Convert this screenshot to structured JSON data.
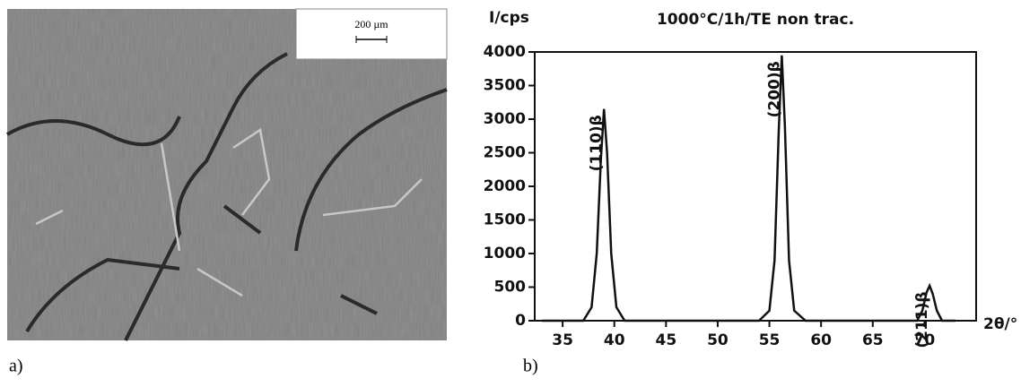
{
  "panel_a": {
    "label": "a)",
    "scale_bar": "200 µm"
  },
  "chart_data": {
    "type": "line",
    "panel_label": "b)",
    "title": "1000°C/1h/TE non trac.",
    "y_label": "I/cps",
    "x_label": "2θ/°",
    "xlim": [
      32.3,
      75
    ],
    "ylim": [
      0,
      4000
    ],
    "xticks": [
      35,
      40,
      45,
      50,
      55,
      60,
      65,
      70
    ],
    "yticks": [
      0,
      500,
      1000,
      1500,
      2000,
      2500,
      3000,
      3500,
      4000
    ],
    "series": [
      {
        "color": "#111111",
        "x": [
          33,
          37,
          37.8,
          38.3,
          38.7,
          39,
          39.3,
          39.7,
          40.2,
          41,
          54,
          55,
          55.5,
          55.9,
          56.2,
          56.5,
          56.9,
          57.4,
          58.5,
          69.3,
          69.8,
          70.2,
          70.5,
          70.8,
          71.2,
          71.7,
          73
        ],
        "values": [
          0,
          0,
          200,
          1000,
          2400,
          3150,
          2500,
          1000,
          200,
          0,
          0,
          150,
          900,
          2800,
          3950,
          2900,
          900,
          150,
          0,
          0,
          150,
          420,
          520,
          400,
          150,
          0,
          0
        ]
      }
    ],
    "annotations": [
      {
        "text": "(110)β",
        "x": 39
      },
      {
        "text": "(200)β",
        "x": 56.2
      },
      {
        "text": "(211)β",
        "x": 70.5
      }
    ]
  }
}
